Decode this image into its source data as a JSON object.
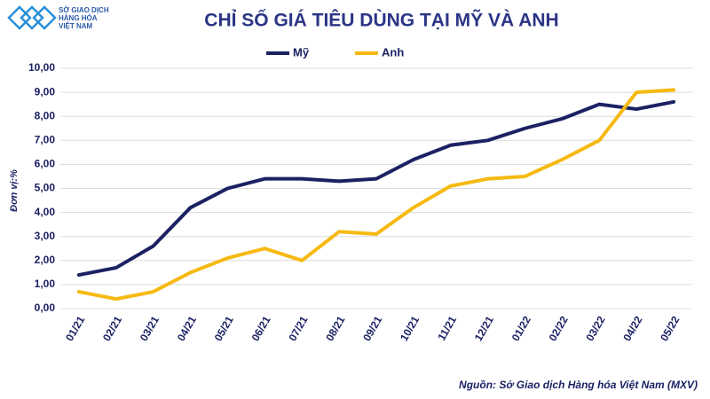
{
  "logo": {
    "line1": "SỞ GIAO DỊCH",
    "line2": "HÀNG HÓA",
    "line3": "VIỆT NAM"
  },
  "chart_data": {
    "type": "line",
    "title": "CHỈ SỐ GIÁ TIÊU DÙNG TẠI MỸ VÀ ANH",
    "y_label": "Đơn vị:%",
    "source": "Nguồn: Sở Giao dịch Hàng hóa Việt Nam (MXV)",
    "categories": [
      "01/21",
      "02/21",
      "03/21",
      "04/21",
      "05/21",
      "06/21",
      "07/21",
      "08/21",
      "09/21",
      "10/21",
      "11/21",
      "12/21",
      "01/22",
      "02/22",
      "03/22",
      "04/22",
      "05/22"
    ],
    "series": [
      {
        "name": "Mỹ",
        "color": "#1b2163",
        "values": [
          1.4,
          1.7,
          2.6,
          4.2,
          5.0,
          5.4,
          5.4,
          5.3,
          5.4,
          6.2,
          6.8,
          7.0,
          7.5,
          7.9,
          8.5,
          8.3,
          8.6
        ]
      },
      {
        "name": "Anh",
        "color": "#f6b911",
        "values": [
          0.7,
          0.4,
          0.7,
          1.5,
          2.1,
          2.5,
          2.0,
          3.2,
          3.1,
          4.2,
          5.1,
          5.4,
          5.5,
          6.2,
          7.0,
          9.0,
          9.1
        ]
      }
    ],
    "ylim": [
      0,
      10
    ],
    "yticks": [
      {
        "value": 0,
        "label": "0,00"
      },
      {
        "value": 1,
        "label": "1,00"
      },
      {
        "value": 2,
        "label": "2,00"
      },
      {
        "value": 3,
        "label": "3,00"
      },
      {
        "value": 4,
        "label": "4,00"
      },
      {
        "value": 5,
        "label": "5,00"
      },
      {
        "value": 6,
        "label": "6,00"
      },
      {
        "value": 7,
        "label": "7,00"
      },
      {
        "value": 8,
        "label": "8,00"
      },
      {
        "value": 9,
        "label": "9,00"
      },
      {
        "value": 10,
        "label": "10,00"
      }
    ],
    "grid": true,
    "legend": "top"
  }
}
